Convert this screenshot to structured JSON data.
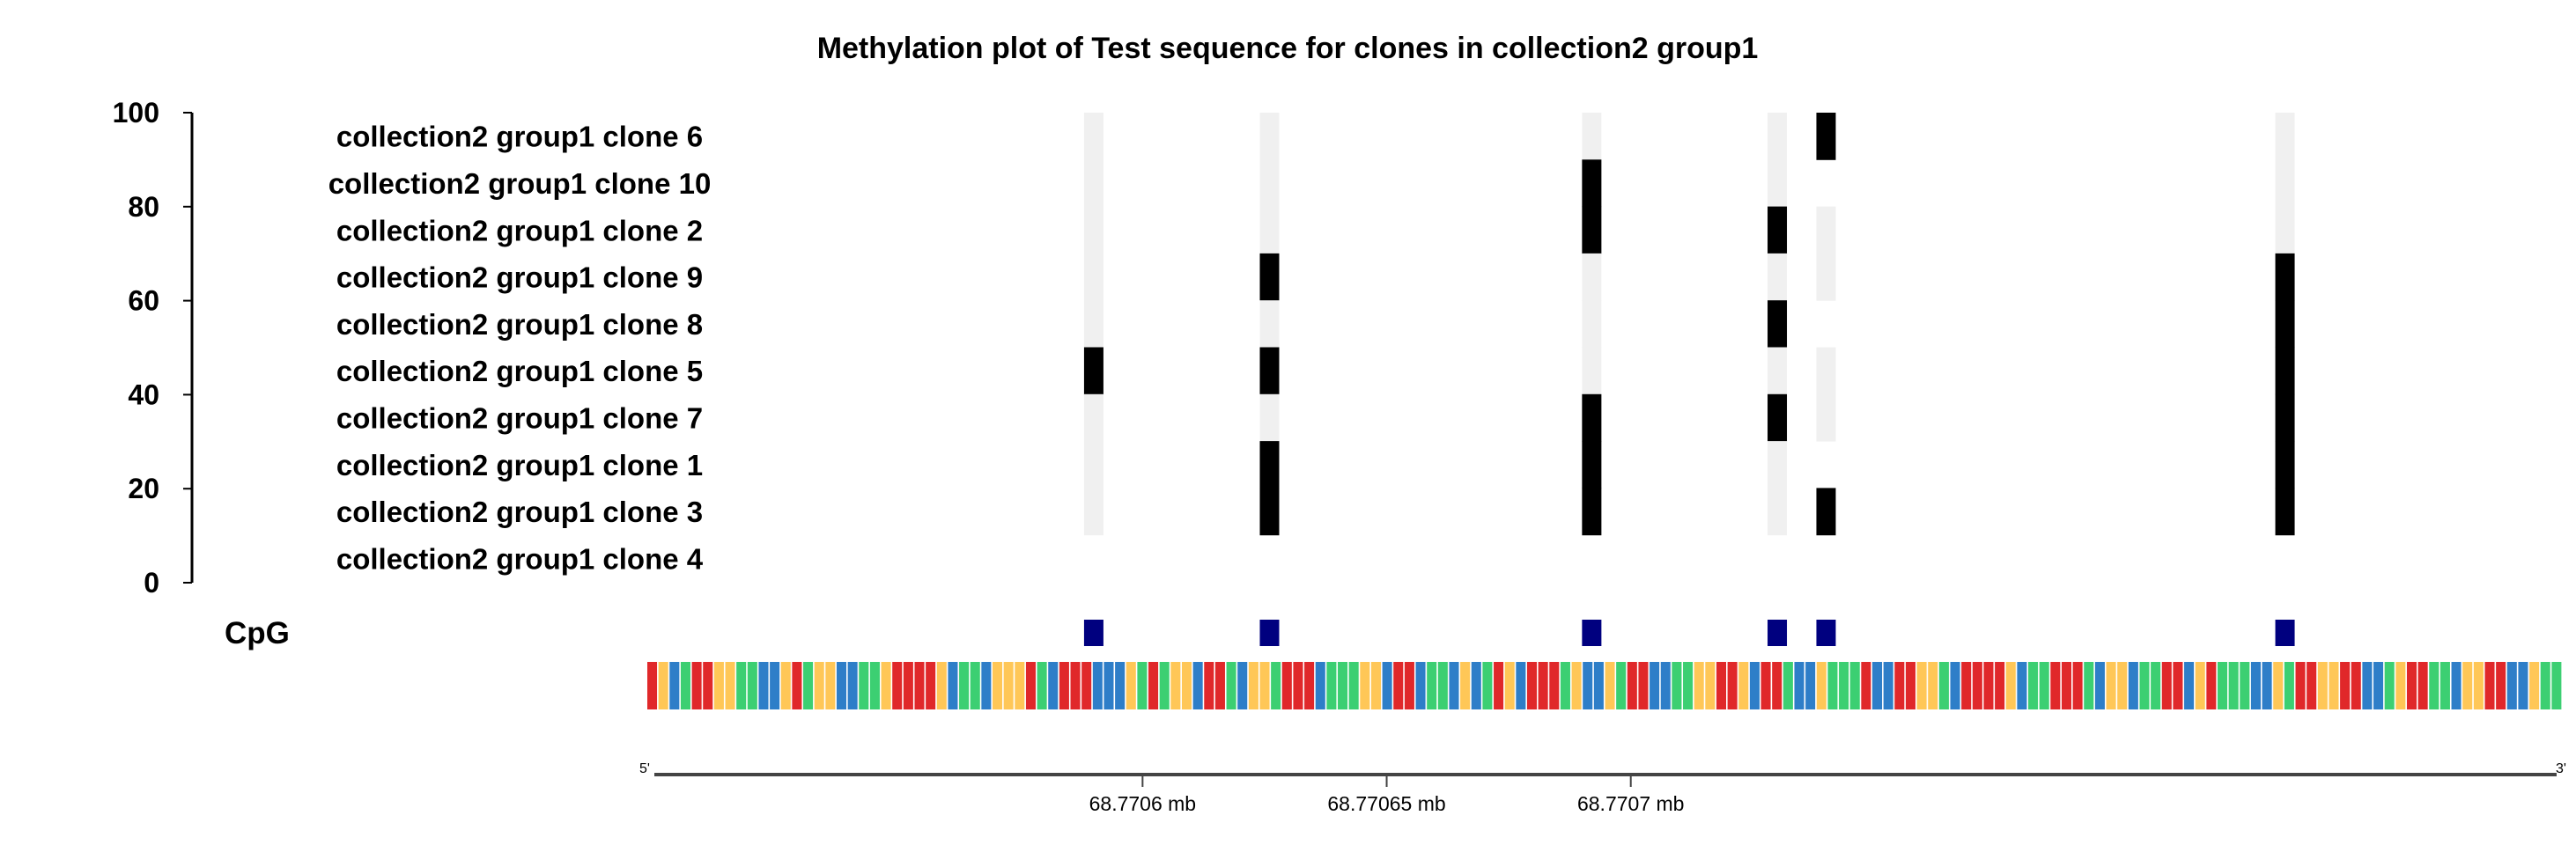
{
  "chart_data": {
    "type": "heatmap",
    "title": "Methylation plot of Test sequence for clones in collection2 group1",
    "ylim": [
      0,
      100
    ],
    "yticks": [
      "0",
      "20",
      "40",
      "60",
      "80",
      "100"
    ],
    "clones": [
      "collection2 group1 clone 6",
      "collection2 group1 clone 10",
      "collection2 group1 clone 2",
      "collection2 group1 clone 9",
      "collection2 group1 clone 8",
      "collection2 group1 clone 5",
      "collection2 group1 clone 7",
      "collection2 group1 clone 1",
      "collection2 group1 clone 3",
      "collection2 group1 clone 4"
    ],
    "track_label": "CpG",
    "xlim_mb": [
      68.7705,
      68.77089
    ],
    "cpg_sites_mb": [
      68.77059,
      68.770626,
      68.770692,
      68.77073,
      68.77074,
      68.770834
    ],
    "methylation": [
      [
        0,
        0,
        0,
        0,
        1,
        0
      ],
      [
        0,
        0,
        1,
        0,
        null,
        0
      ],
      [
        0,
        0,
        1,
        1,
        0,
        0
      ],
      [
        0,
        1,
        0,
        0,
        0,
        1
      ],
      [
        0,
        0,
        0,
        1,
        null,
        1
      ],
      [
        1,
        1,
        0,
        0,
        0,
        1
      ],
      [
        0,
        0,
        1,
        1,
        0,
        1
      ],
      [
        0,
        1,
        1,
        0,
        null,
        1
      ],
      [
        0,
        1,
        1,
        0,
        1,
        1
      ],
      [
        null,
        null,
        null,
        null,
        null,
        null
      ]
    ],
    "xticks": [
      {
        "value": 68.7706,
        "label": "68.7706 mb"
      },
      {
        "value": 68.77065,
        "label": "68.77065 mb"
      },
      {
        "value": 68.7707,
        "label": "68.7707 mb"
      }
    ],
    "end_labels": {
      "left": "5'",
      "right": "3'"
    },
    "sequence": "TGCATTGGAACCGTAGGCCAAGTTTTGCAACGGGTACTTTCCCGATAGGCTTACGGATTTCAAAGGCTTCAACGCATGCTTTAGCCGATTCCAAGGTTGCTTACCGAAATCCTTGGACTTTTGCAATTTACGGCAATTCGTAAACCGATTGGTTCCAGTTAACGGTTCCGAA",
    "base_colors": {
      "A": "#3ccf72",
      "C": "#2e7ec8",
      "G": "#ffc757",
      "T": "#e0282a"
    },
    "colors": {
      "methylated": "#000000",
      "unmethylated": "#f0f0f0",
      "cpg": "#00007f"
    }
  }
}
